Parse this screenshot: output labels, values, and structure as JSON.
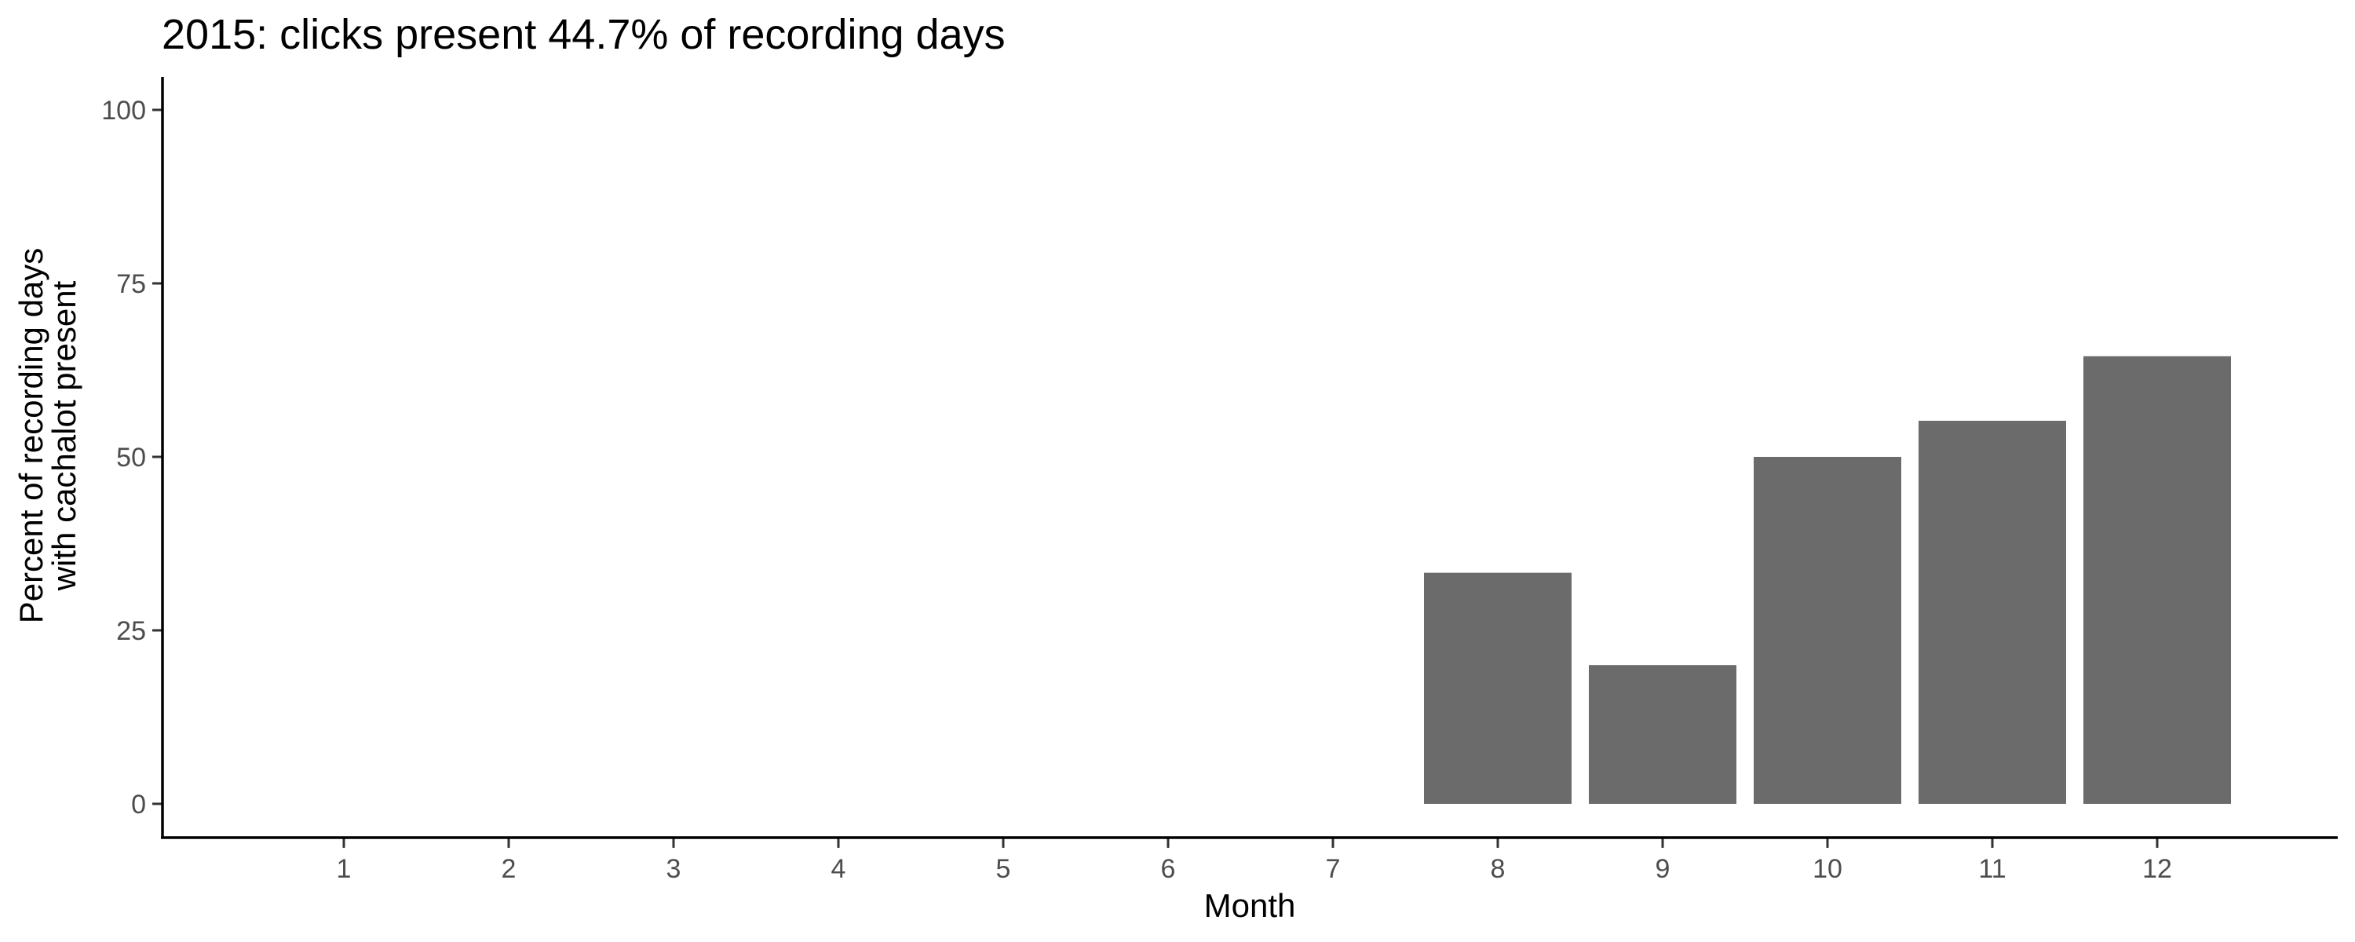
{
  "chart_data": {
    "type": "bar",
    "title": "2015: clicks present 44.7% of recording days",
    "xlabel": "Month",
    "ylabel_lines": [
      "Percent of recording days",
      "with cachalot present"
    ],
    "categories": [
      "1",
      "2",
      "3",
      "4",
      "5",
      "6",
      "7",
      "8",
      "9",
      "10",
      "11",
      "12"
    ],
    "values": [
      null,
      null,
      null,
      null,
      null,
      null,
      null,
      33.3,
      20.0,
      50.0,
      55.2,
      64.5
    ],
    "ylim": [
      0,
      100
    ],
    "yticks": [
      0,
      25,
      50,
      75,
      100
    ],
    "bar_color": "#6b6b6b",
    "grid": false,
    "legend": "none"
  }
}
